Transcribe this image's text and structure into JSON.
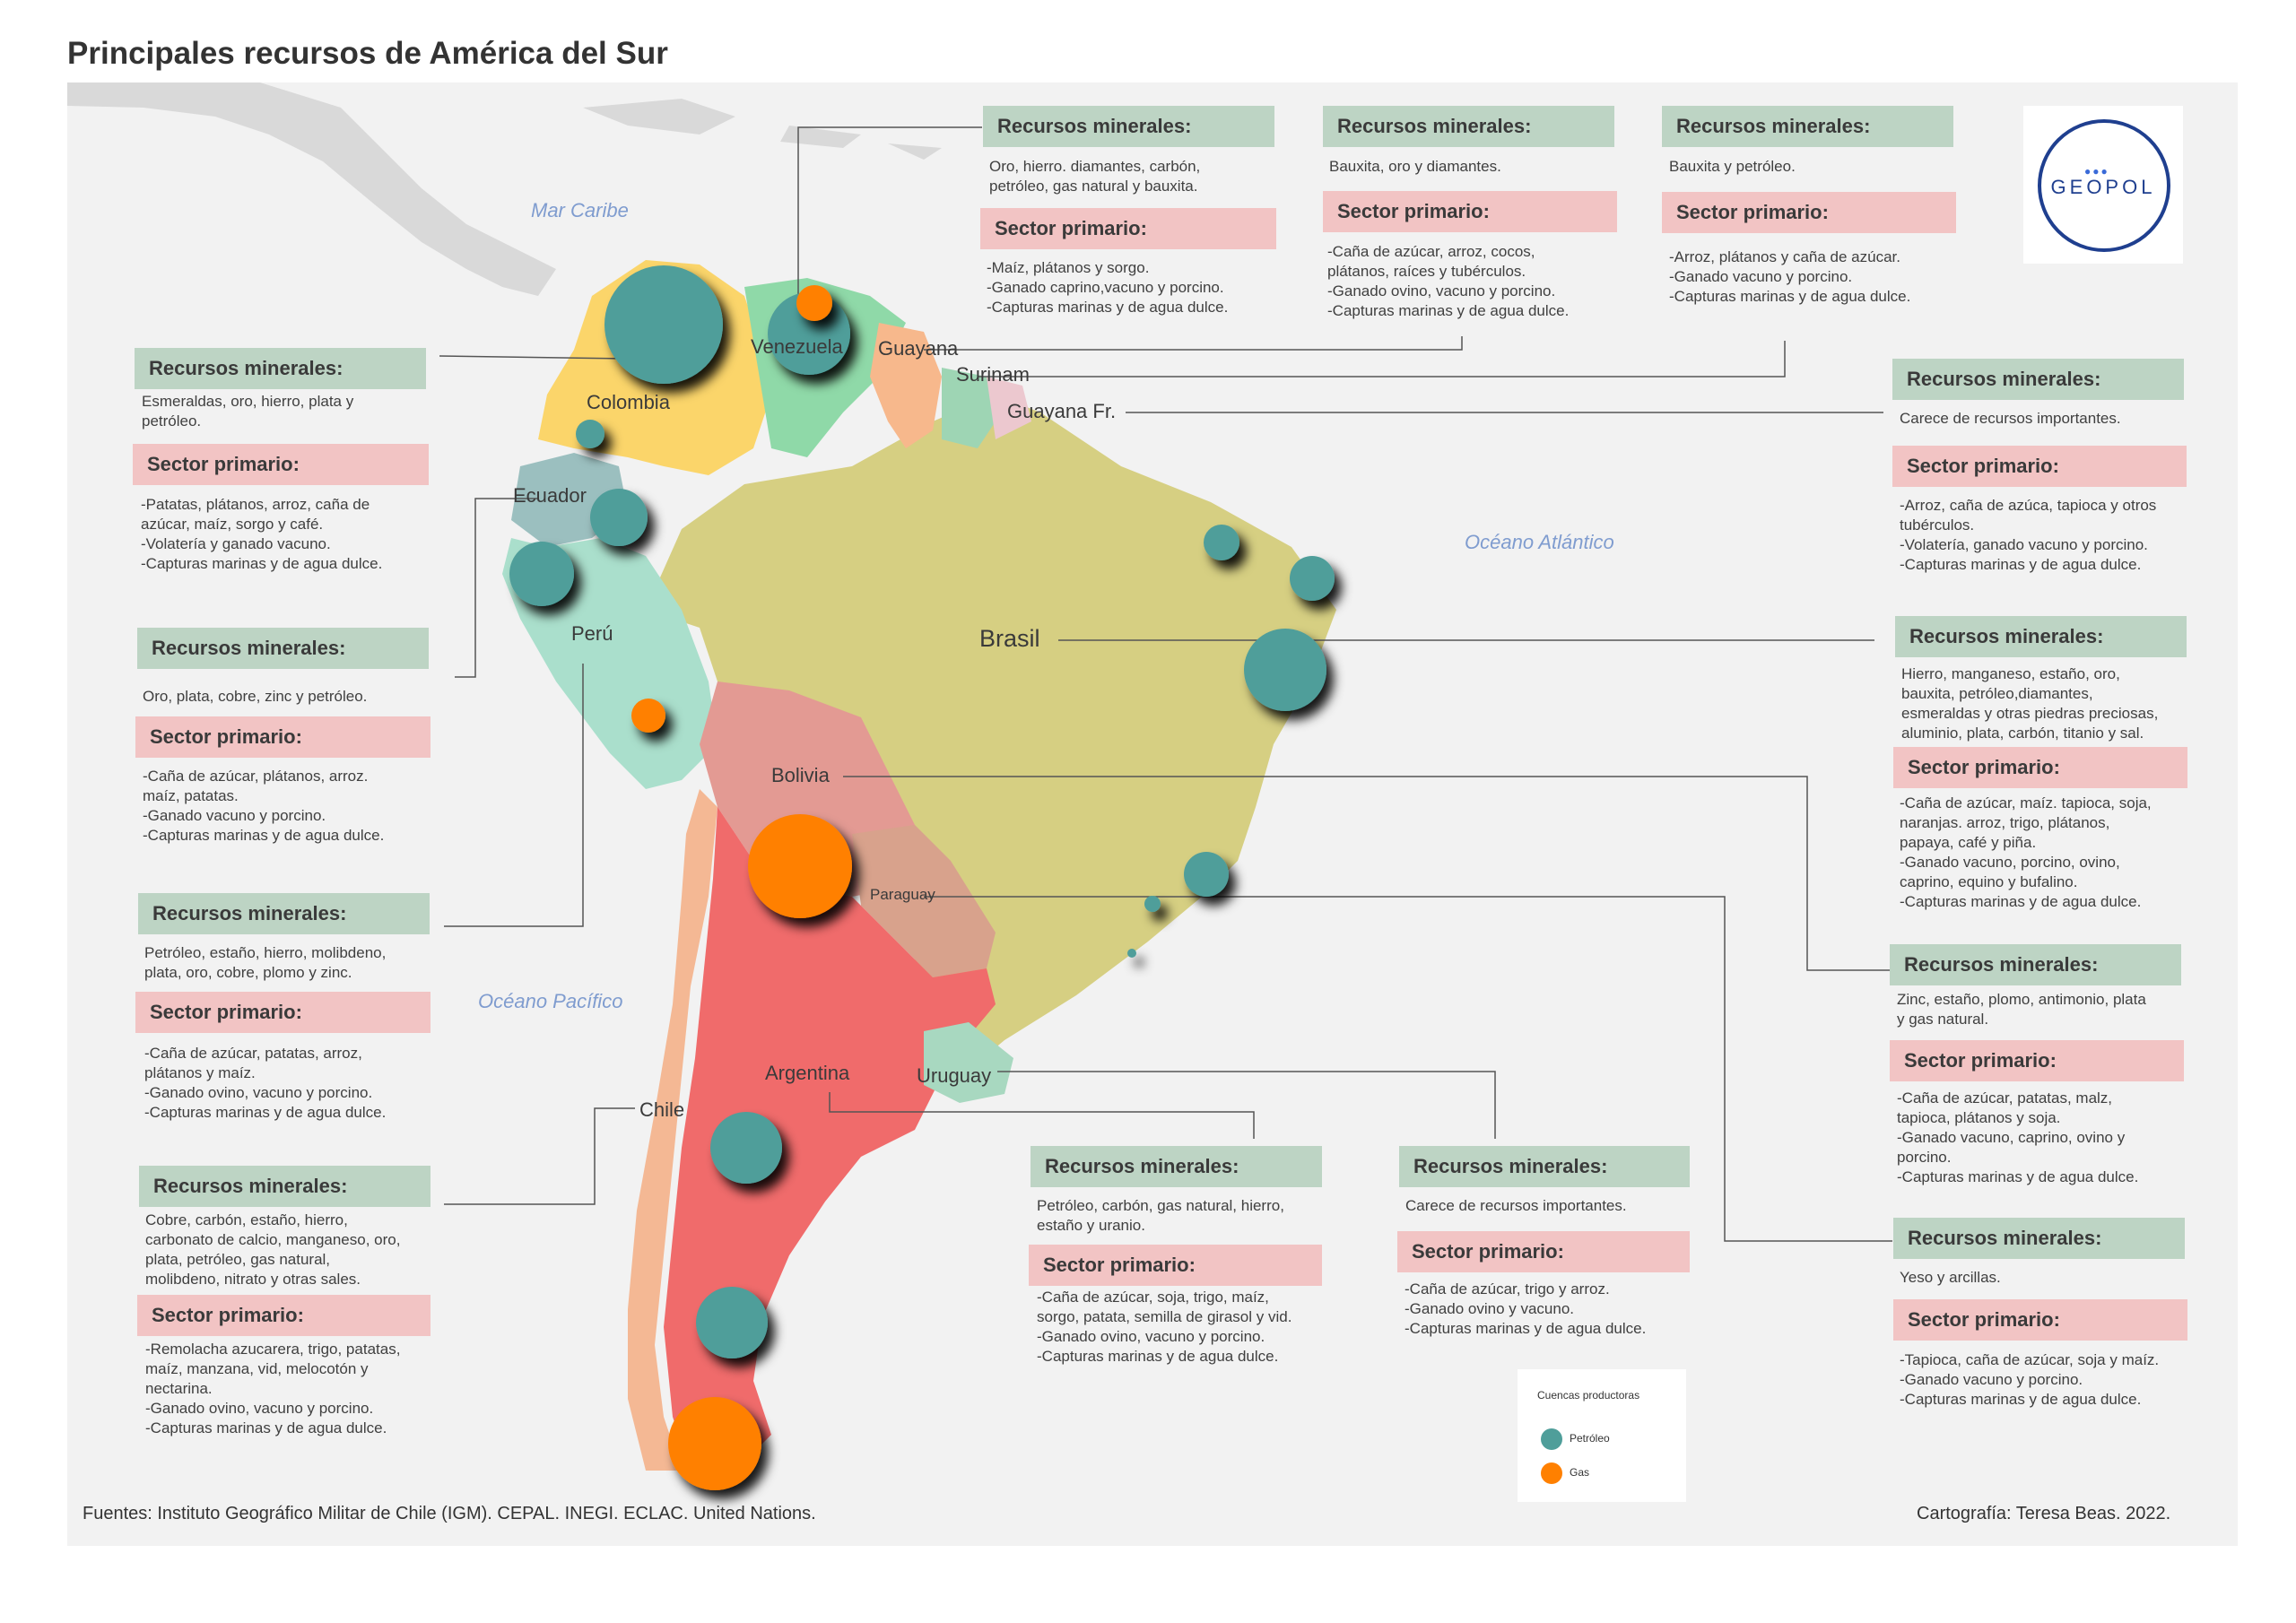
{
  "title": "Principales recursos de América del Sur",
  "colors": {
    "petroleo": "#4f9e9a",
    "gas": "#ff8000",
    "minerales_header": "#bdd4c4",
    "sector_header": "#f2c4c4",
    "brasil": "#d6cf82",
    "argentina": "#f06b6b",
    "colombia": "#fbd56a",
    "peru": "#aadfcc",
    "bolivia": "#e39a93",
    "chile": "#f4b894",
    "venezuela": "#8fd9a8",
    "paraguay": "#d8a28c",
    "uruguay": "#a8d8c0",
    "ecuador": "#9bbfbf"
  },
  "seas": {
    "caribe": "Mar Caribe",
    "atlantico": "Océano Atlántico",
    "pacifico": "Océano Pacífico"
  },
  "countries": {
    "venezuela": "Venezuela",
    "guyana": "Guayana",
    "surinam": "Surinam",
    "guayana_fr": "Guayana Fr.",
    "colombia": "Colombia",
    "ecuador": "Ecuador",
    "peru": "Perú",
    "brasil": "Brasil",
    "bolivia": "Bolivia",
    "paraguay": "Paraguay",
    "chile": "Chile",
    "argentina": "Argentina",
    "uruguay": "Uruguay"
  },
  "labels": {
    "minerales": "Recursos minerales:",
    "sector": "Sector primario:"
  },
  "boxes": {
    "venezuela": {
      "minerales": "Oro, hierro. diamantes, carbón,\npetróleo, gas natural y bauxita.",
      "sector": "-Maíz, plátanos y sorgo.\n-Ganado caprino,vacuno y porcino.\n-Capturas marinas y de agua dulce."
    },
    "guyana": {
      "minerales": "Bauxita, oro y diamantes.",
      "sector": "-Caña de azúcar, arroz, cocos,\nplátanos, raíces y tubérculos.\n-Ganado ovino, vacuno y porcino.\n-Capturas marinas y de agua dulce."
    },
    "surinam": {
      "minerales": "Bauxita y  petróleo.",
      "sector": "-Arroz, plátanos y caña de azúcar.\n-Ganado vacuno y porcino.\n-Capturas marinas y de agua dulce."
    },
    "colombia": {
      "minerales": "Esmeraldas, oro, hierro, plata y\npetróleo.",
      "sector": "-Patatas, plátanos, arroz, caña de\nazúcar, maíz, sorgo y café.\n-Volatería y ganado vacuno.\n-Capturas marinas y de agua dulce."
    },
    "ecuador": {
      "minerales": "Oro, plata, cobre, zinc y petróleo.",
      "sector": "-Caña de azúcar, plátanos, arroz.\nmaíz, patatas.\n-Ganado vacuno y porcino.\n-Capturas marinas y de agua dulce."
    },
    "peru": {
      "minerales": "Petróleo,  estaño,  hierro,  molibdeno,\nplata, oro, cobre, plomo y zinc.",
      "sector": "-Caña de azúcar, patatas, arroz,\nplátanos y maíz.\n-Ganado ovino, vacuno y porcino.\n-Capturas marinas y de agua dulce."
    },
    "chile": {
      "minerales": "Cobre,    carbón,    estaño,    hierro,\ncarbonato de calcio, manganeso, oro,\nplata,     petróleo,     gas     natural,\nmolibdeno, nitrato y otras sales.",
      "sector": "-Remolacha azucarera, trigo, patatas,\nmaíz, manzana, vid, melocotón y\nnectarina.\n-Ganado ovino, vacuno y porcino.\n-Capturas marinas y de agua dulce."
    },
    "guayana_fr": {
      "minerales": "Carece de recursos importantes.",
      "sector": "-Arroz, caña de azúca, tapioca y otros\ntubérculos.\n-Volatería, ganado vacuno y porcino.\n-Capturas marinas y de agua dulce."
    },
    "brasil": {
      "minerales": "Hierro, manganeso, estaño, oro,\nbauxita, petróleo,diamantes,\nesmeraldas y otras piedras preciosas,\naluminio, plata, carbón, titanio y sal.",
      "sector": "-Caña de azúcar, maíz. tapioca, soja,\nnaranjas. arroz, trigo, plátanos,\npapaya, café y piña.\n-Ganado vacuno, porcino, ovino,\ncaprino, equino y bufalino.\n-Capturas marinas y de agua dulce."
    },
    "bolivia": {
      "minerales": "Zinc, estaño, plomo, antimonio, plata\ny gas natural.",
      "sector": "-Caña de azúcar, patatas, malz,\ntapioca, plátanos y soja.\n-Ganado vacuno, caprino, ovino y\nporcino.\n-Capturas marinas y de agua dulce."
    },
    "paraguay": {
      "minerales": "Yeso y arcillas.",
      "sector": "-Tapioca, caña de azúcar, soja y maíz.\n-Ganado vacuno y porcino.\n-Capturas marinas y de agua dulce."
    },
    "argentina": {
      "minerales": "Petróleo, carbón, gas natural, hierro,\nestaño y uranio.",
      "sector": "-Caña de azúcar, soja, trigo, maíz,\nsorgo, patata, semilla de girasol y vid.\n-Ganado ovino, vacuno y porcino.\n-Capturas marinas y de agua dulce."
    },
    "uruguay": {
      "minerales": "Carece de recursos importantes.",
      "sector": "-Caña de azúcar, trigo y arroz.\n-Ganado ovino y vacuno.\n-Capturas marinas y de agua dulce."
    }
  },
  "legend": {
    "title": "Cuencas productoras",
    "petroleo": "Petróleo",
    "gas": "Gas"
  },
  "logo": "GEOPOL",
  "footer": {
    "sources": "Fuentes:  Instituto Geográfico Militar de Chile (IGM). CEPAL. INEGI. ECLAC. United Nations.",
    "credit": "Cartografía: Teresa Beas. 2022."
  }
}
